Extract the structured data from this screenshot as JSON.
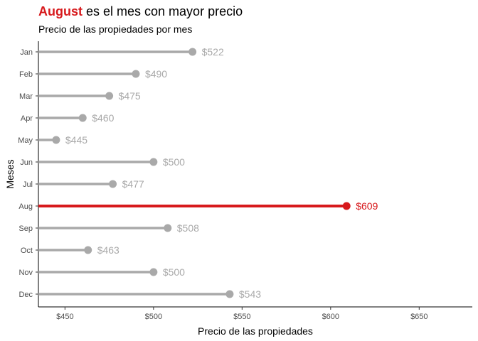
{
  "title": {
    "highlight": "August",
    "rest": " es el mes con mayor precio"
  },
  "subtitle": "Precio de las propiedades por mes",
  "chart_data": {
    "type": "lollipop",
    "title": "August es el mes con mayor precio",
    "subtitle": "Precio de las propiedades por mes",
    "xlabel": "Precio de las propiedades",
    "ylabel": "Meses",
    "xlim": [
      435,
      680
    ],
    "x_ticks": [
      450,
      500,
      550,
      600,
      650
    ],
    "x_tick_labels": [
      "$450",
      "$500",
      "$550",
      "$600",
      "$650"
    ],
    "categories": [
      "Jan",
      "Feb",
      "Mar",
      "Apr",
      "May",
      "Jun",
      "Jul",
      "Aug",
      "Sep",
      "Oct",
      "Nov",
      "Dec"
    ],
    "values": [
      522,
      490,
      475,
      460,
      445,
      500,
      477,
      609,
      508,
      463,
      500,
      543
    ],
    "value_labels": [
      "$522",
      "$490",
      "$475",
      "$460",
      "$445",
      "$500",
      "$477",
      "$609",
      "$508",
      "$463",
      "$500",
      "$543"
    ],
    "highlight_category": "Aug",
    "colors": {
      "default": "#a9a9a9",
      "highlight": "#d7191c"
    },
    "grid": false
  }
}
